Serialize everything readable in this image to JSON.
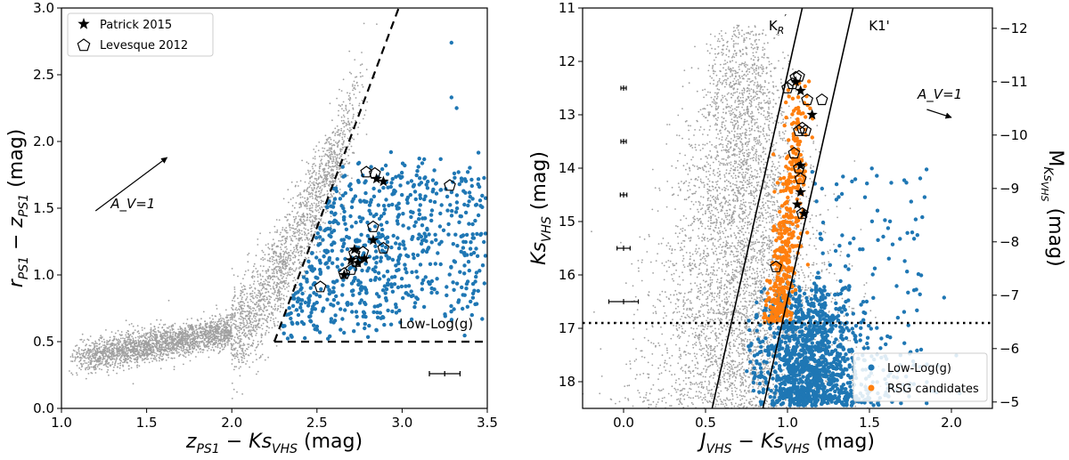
{
  "chart_data": [
    {
      "type": "scatter",
      "title": "",
      "xlabel": "z_PS1 − Ks_VHS (mag)",
      "ylabel": "r_PS1 − z_PS1 (mag)",
      "xlim": [
        1.0,
        3.5
      ],
      "ylim": [
        0.0,
        3.0
      ],
      "xticks": [
        "1.0",
        "1.5",
        "2.0",
        "2.5",
        "3.0",
        "3.5"
      ],
      "yticks": [
        "0.0",
        "0.5",
        "1.0",
        "1.5",
        "2.0",
        "2.5",
        "3.0"
      ],
      "grid": false,
      "legend_position": "top-left",
      "legend": [
        {
          "marker": "star",
          "label": "Patrick 2015"
        },
        {
          "marker": "pentagon",
          "label": "Levesque 2012"
        }
      ],
      "colors": {
        "background_stars": "#a0a0a0",
        "low_logg": "#1f77b4",
        "markers": "#000000"
      },
      "selection_boundary": {
        "style": "dashed",
        "vertices": [
          [
            2.25,
            0.5
          ],
          [
            3.5,
            0.5
          ],
          [
            2.25,
            0.5
          ],
          [
            2.98,
            3.0
          ]
        ],
        "label": "Low-Log(g)"
      },
      "extinction_vector": {
        "label": "A_V = 1",
        "from": [
          1.2,
          1.48
        ],
        "to": [
          1.62,
          1.88
        ]
      },
      "error_bar": {
        "x": 3.25,
        "y": 0.26,
        "xerr": 0.09,
        "yerr": 0.02
      },
      "patrick_2015": [
        {
          "x": 2.85,
          "y": 1.72
        },
        {
          "x": 2.89,
          "y": 1.7
        },
        {
          "x": 2.83,
          "y": 1.26
        },
        {
          "x": 2.72,
          "y": 1.19
        },
        {
          "x": 2.7,
          "y": 1.11
        },
        {
          "x": 2.74,
          "y": 1.09
        },
        {
          "x": 2.66,
          "y": 1.0
        },
        {
          "x": 2.78,
          "y": 1.12
        }
      ],
      "levesque_2012": [
        {
          "x": 2.79,
          "y": 1.77
        },
        {
          "x": 2.84,
          "y": 1.76
        },
        {
          "x": 2.83,
          "y": 1.36
        },
        {
          "x": 2.89,
          "y": 1.2
        },
        {
          "x": 2.77,
          "y": 1.17
        },
        {
          "x": 2.52,
          "y": 0.91
        },
        {
          "x": 2.66,
          "y": 1.01
        },
        {
          "x": 2.7,
          "y": 1.04
        },
        {
          "x": 2.73,
          "y": 1.1
        },
        {
          "x": 3.28,
          "y": 1.67
        },
        {
          "x": 2.72,
          "y": 1.16
        }
      ],
      "background_locus": [
        {
          "x": 1.25,
          "y": 0.42
        },
        {
          "x": 1.5,
          "y": 0.47
        },
        {
          "x": 1.75,
          "y": 0.55
        },
        {
          "x": 2.0,
          "y": 0.72
        },
        {
          "x": 2.1,
          "y": 0.9
        },
        {
          "x": 2.2,
          "y": 1.2
        },
        {
          "x": 2.3,
          "y": 1.6
        },
        {
          "x": 2.4,
          "y": 2.0
        },
        {
          "x": 2.5,
          "y": 2.4
        }
      ]
    },
    {
      "type": "scatter",
      "title": "",
      "xlabel": "J_VHS − Ks_VHS (mag)",
      "ylabel": "Ks_VHS (mag)",
      "ylabel_right": "M_Ks_VHS (mag)",
      "xlim": [
        -0.25,
        2.25
      ],
      "ylim": [
        18.5,
        11.0
      ],
      "ylim_right": [
        -4.88,
        -12.38
      ],
      "xticks": [
        "0.0",
        "0.5",
        "1.0",
        "1.5",
        "2.0"
      ],
      "yticks": [
        "11",
        "12",
        "13",
        "14",
        "15",
        "16",
        "17",
        "18"
      ],
      "yticks_right": [
        "−12",
        "−11",
        "−10",
        "−9",
        "−8",
        "−7",
        "−6",
        "−5"
      ],
      "grid": false,
      "legend_position": "bottom-right",
      "legend": [
        {
          "marker": "dot",
          "color": "#1f77b4",
          "label": "Low-Log(g)"
        },
        {
          "marker": "dot",
          "color": "#ff7f0e",
          "label": "RSG candidates"
        }
      ],
      "colors": {
        "background_stars": "#a0a0a0",
        "low_logg": "#1f77b4",
        "rsg": "#ff7f0e",
        "markers": "#000000"
      },
      "limit_line": {
        "style": "dotted",
        "y": 16.9
      },
      "boundary_lines": [
        {
          "label": "K′_R",
          "points": [
            [
              0.54,
              18.5
            ],
            [
              1.09,
              11.0
            ]
          ]
        },
        {
          "label": "K1'",
          "points": [
            [
              0.85,
              18.5
            ],
            [
              1.4,
              11.0
            ]
          ]
        }
      ],
      "extinction_vector": {
        "label": "A_V = 1",
        "from": [
          1.85,
          12.9
        ],
        "to": [
          2.0,
          13.05
        ]
      },
      "error_bars": [
        {
          "x": 0.0,
          "y": 12.5,
          "xerr": 0.01,
          "yerr": 0.05
        },
        {
          "x": 0.0,
          "y": 13.5,
          "xerr": 0.015,
          "yerr": 0.05
        },
        {
          "x": 0.0,
          "y": 14.5,
          "xerr": 0.02,
          "yerr": 0.05
        },
        {
          "x": 0.0,
          "y": 15.5,
          "xerr": 0.04,
          "yerr": 0.05
        },
        {
          "x": 0.0,
          "y": 16.5,
          "xerr": 0.09,
          "yerr": 0.08
        }
      ],
      "patrick_2015": [
        {
          "x": 1.15,
          "y": 13.0
        },
        {
          "x": 1.06,
          "y": 14.68
        },
        {
          "x": 1.08,
          "y": 13.95
        },
        {
          "x": 1.08,
          "y": 14.45
        },
        {
          "x": 1.1,
          "y": 14.85
        },
        {
          "x": 1.05,
          "y": 12.38
        },
        {
          "x": 1.08,
          "y": 12.55
        }
      ],
      "levesque_2012": [
        {
          "x": 1.0,
          "y": 12.5
        },
        {
          "x": 1.03,
          "y": 12.42
        },
        {
          "x": 1.05,
          "y": 12.3
        },
        {
          "x": 1.07,
          "y": 12.28
        },
        {
          "x": 1.12,
          "y": 12.72
        },
        {
          "x": 1.21,
          "y": 12.72
        },
        {
          "x": 1.07,
          "y": 13.3
        },
        {
          "x": 1.09,
          "y": 13.25
        },
        {
          "x": 1.11,
          "y": 13.3
        },
        {
          "x": 1.04,
          "y": 13.72
        },
        {
          "x": 1.07,
          "y": 14.0
        },
        {
          "x": 1.08,
          "y": 14.2
        },
        {
          "x": 1.09,
          "y": 14.85
        },
        {
          "x": 0.93,
          "y": 15.85
        }
      ]
    }
  ]
}
